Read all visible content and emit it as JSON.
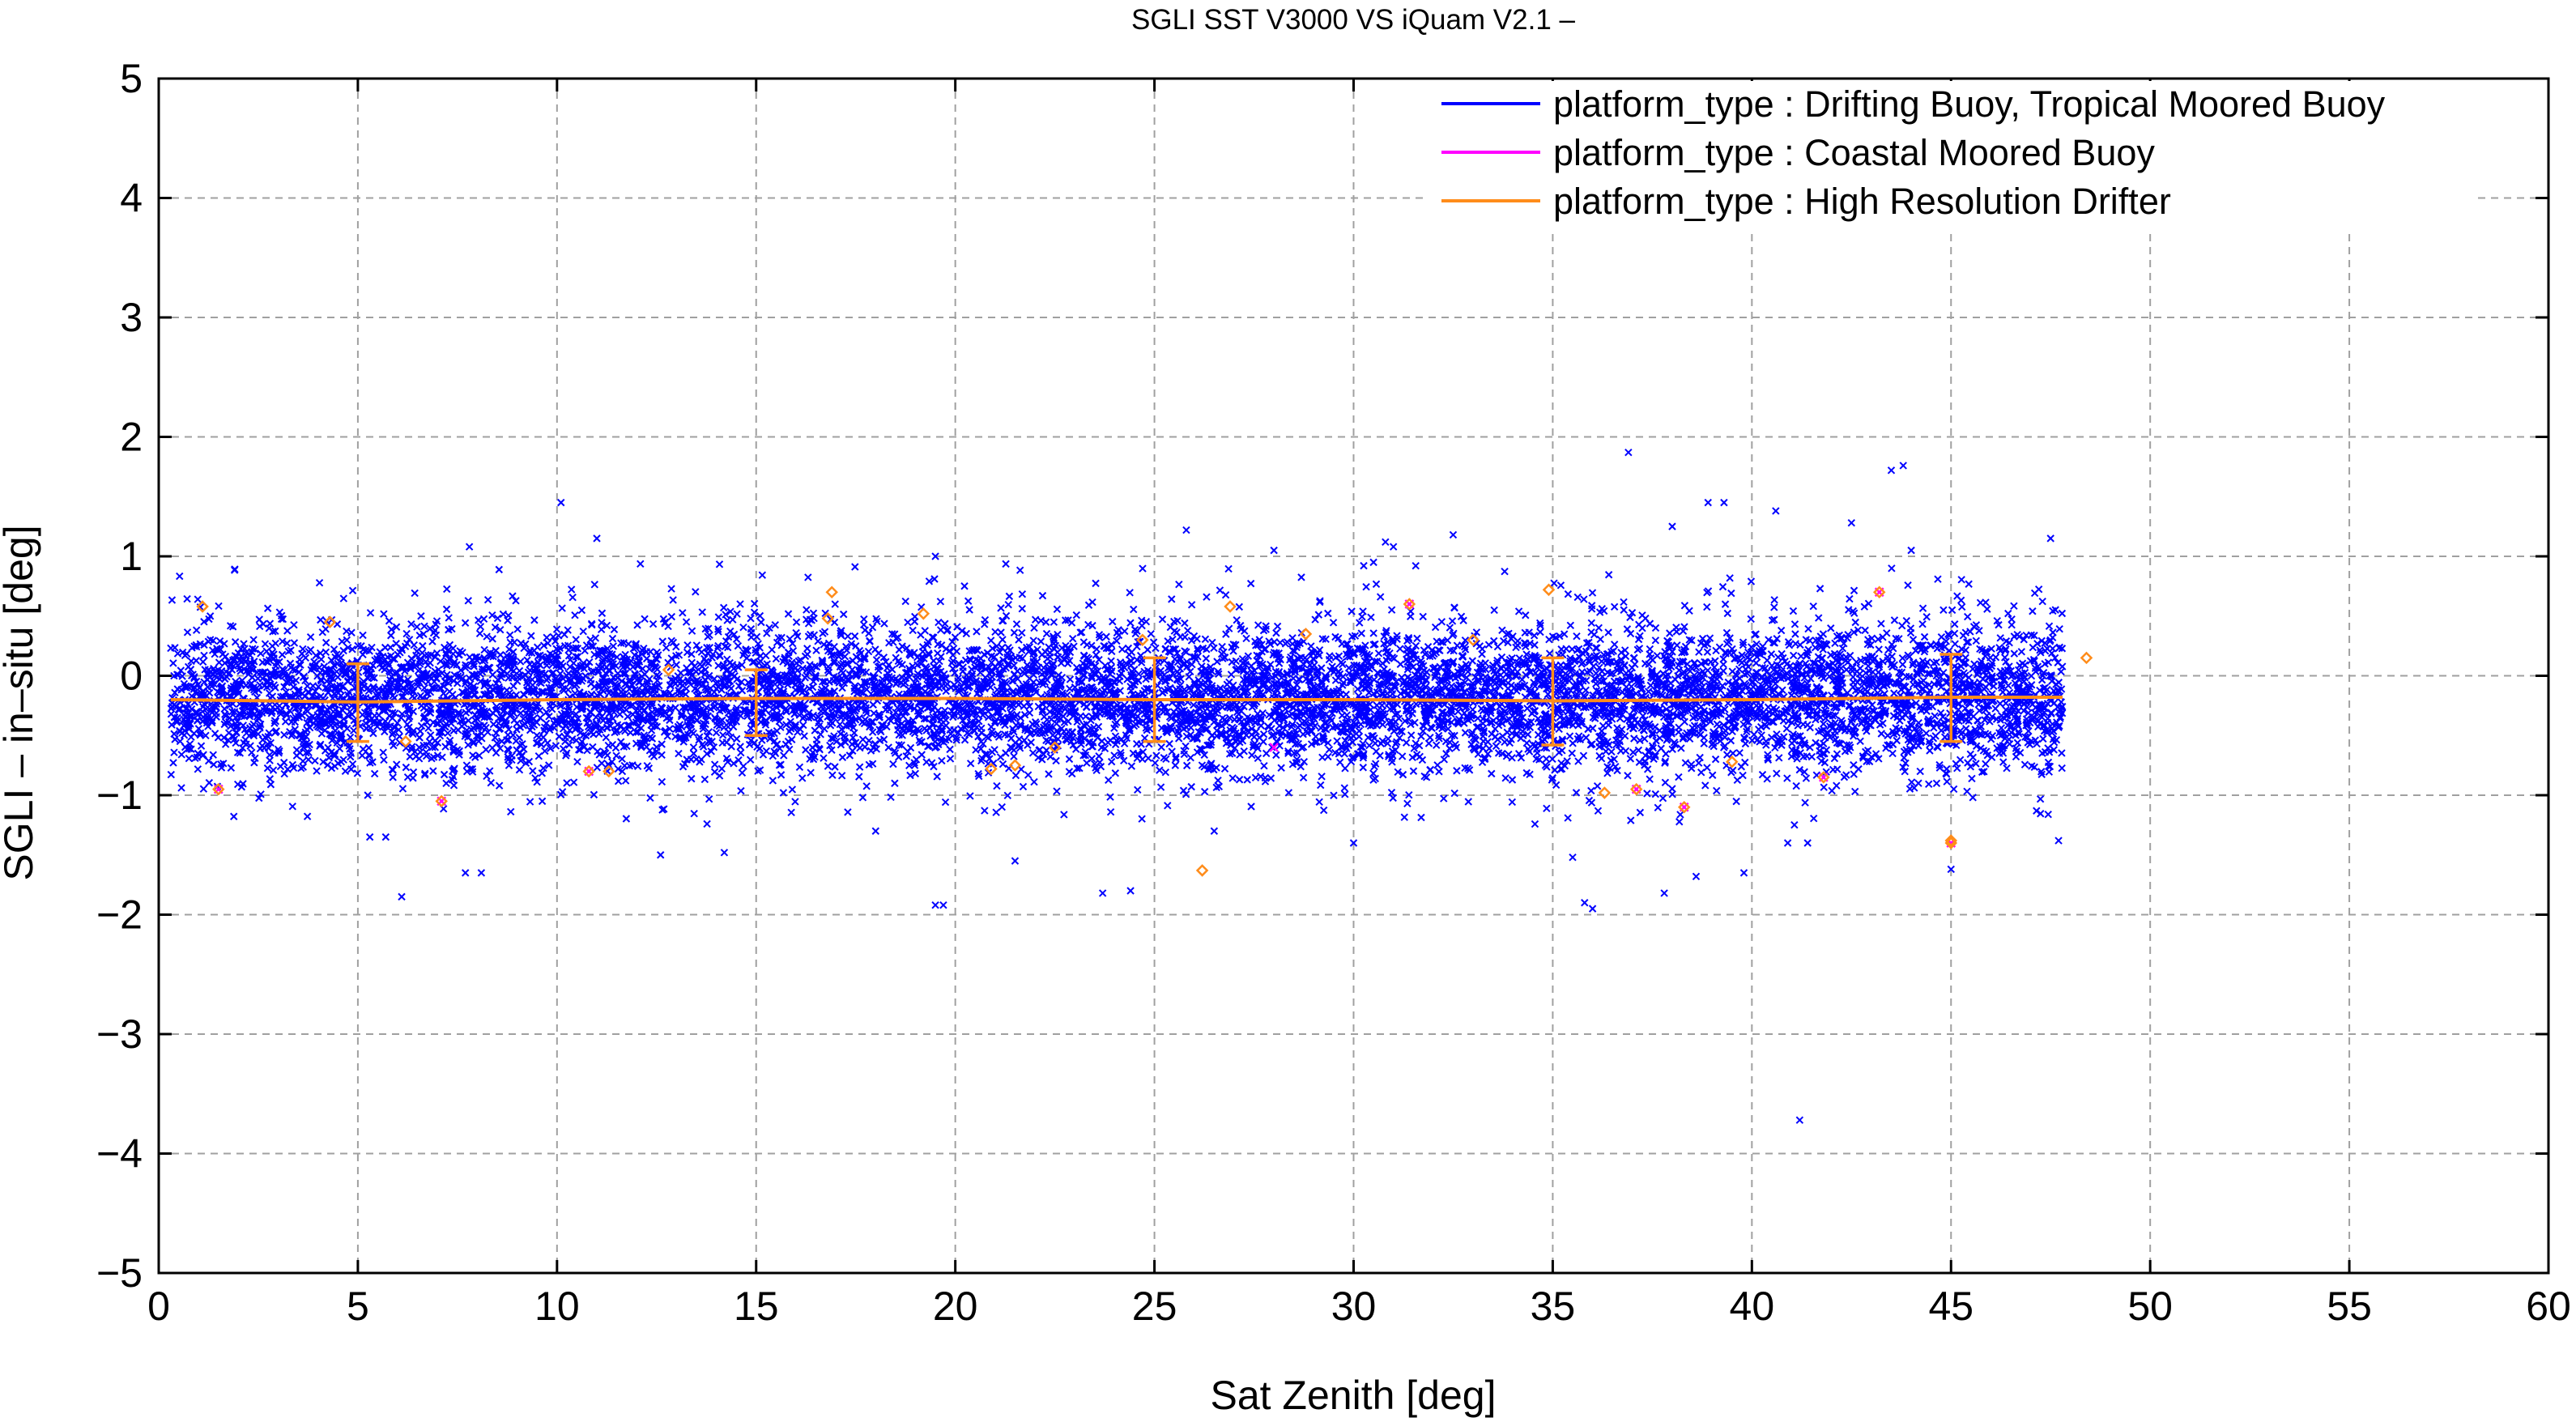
{
  "chart_data": {
    "type": "scatter",
    "title": "SGLI SST V3000 VS iQuam V2.1  –",
    "xlabel": "Sat Zenith [deg]",
    "ylabel": "SGLI – in–situ [deg]",
    "xlim": [
      0,
      60
    ],
    "ylim": [
      -5,
      5
    ],
    "xticks": [
      0,
      5,
      10,
      15,
      20,
      25,
      30,
      35,
      40,
      45,
      50,
      55,
      60
    ],
    "yticks": [
      -5,
      -4,
      -3,
      -2,
      -1,
      0,
      1,
      2,
      3,
      4,
      5
    ],
    "xtick_labels": [
      "0",
      "5",
      "10",
      "15",
      "20",
      "25",
      "30",
      "35",
      "40",
      "45",
      "50",
      "55",
      "60"
    ],
    "ytick_labels": [
      "−5",
      "−4",
      "−3",
      "−2",
      "−1",
      "0",
      "1",
      "2",
      "3",
      "4",
      "5"
    ],
    "grid": true,
    "legend_position": "top-right",
    "legend": [
      {
        "label": "platform_type : Drifting Buoy, Tropical Moored Buoy",
        "color": "#0000ff"
      },
      {
        "label": "platform_type : Coastal Moored Buoy",
        "color": "#ff00ff"
      },
      {
        "label": "platform_type : High Resolution Drifter",
        "color": "#ff8c1a"
      }
    ],
    "series": [
      {
        "name": "platform_type : Drifting Buoy, Tropical Moored Buoy",
        "marker": "x",
        "color": "#0000ff",
        "cloud": {
          "x_range": [
            0.3,
            47.8
          ],
          "mean": -0.18,
          "std": 0.3,
          "count": 9000
        },
        "outliers": [
          {
            "x": 10.1,
            "y": 1.45
          },
          {
            "x": 11.0,
            "y": 1.15
          },
          {
            "x": 7.8,
            "y": 1.08
          },
          {
            "x": 36.9,
            "y": 1.87
          },
          {
            "x": 43.8,
            "y": 1.76
          },
          {
            "x": 43.5,
            "y": 1.72
          },
          {
            "x": 38.9,
            "y": 1.45
          },
          {
            "x": 39.3,
            "y": 1.45
          },
          {
            "x": 40.6,
            "y": 1.38
          },
          {
            "x": 38.0,
            "y": 1.25
          },
          {
            "x": 42.5,
            "y": 1.28
          },
          {
            "x": 25.8,
            "y": 1.22
          },
          {
            "x": 30.8,
            "y": 1.12
          },
          {
            "x": 31.0,
            "y": 1.08
          },
          {
            "x": 32.5,
            "y": 1.18
          },
          {
            "x": 47.5,
            "y": 1.15
          },
          {
            "x": 44.0,
            "y": 1.05
          },
          {
            "x": 28.0,
            "y": 1.05
          },
          {
            "x": 30.5,
            "y": 0.95
          },
          {
            "x": 19.5,
            "y": 1.0
          },
          {
            "x": 41.2,
            "y": -3.72
          },
          {
            "x": 19.5,
            "y": -1.92
          },
          {
            "x": 19.7,
            "y": -1.92
          },
          {
            "x": 6.1,
            "y": -1.85
          },
          {
            "x": 23.7,
            "y": -1.82
          },
          {
            "x": 24.4,
            "y": -1.8
          },
          {
            "x": 36.0,
            "y": -1.95
          },
          {
            "x": 35.8,
            "y": -1.9
          },
          {
            "x": 37.8,
            "y": -1.82
          },
          {
            "x": 38.6,
            "y": -1.68
          },
          {
            "x": 39.8,
            "y": -1.65
          },
          {
            "x": 7.7,
            "y": -1.65
          },
          {
            "x": 8.1,
            "y": -1.65
          },
          {
            "x": 45.0,
            "y": -1.62
          },
          {
            "x": 21.5,
            "y": -1.55
          },
          {
            "x": 12.6,
            "y": -1.5
          },
          {
            "x": 14.2,
            "y": -1.48
          },
          {
            "x": 35.5,
            "y": -1.52
          },
          {
            "x": 47.7,
            "y": -1.38
          },
          {
            "x": 40.9,
            "y": -1.4
          },
          {
            "x": 41.4,
            "y": -1.4
          },
          {
            "x": 5.3,
            "y": -1.35
          },
          {
            "x": 5.7,
            "y": -1.35
          },
          {
            "x": 30.0,
            "y": -1.4
          },
          {
            "x": 18.0,
            "y": -1.3
          },
          {
            "x": 26.5,
            "y": -1.3
          }
        ]
      },
      {
        "name": "platform_type : Coastal Moored Buoy",
        "marker": "x",
        "color": "#ff00ff",
        "points": [
          {
            "x": 1.5,
            "y": -0.95
          },
          {
            "x": 7.1,
            "y": -1.05
          },
          {
            "x": 10.8,
            "y": -0.8
          },
          {
            "x": 28.0,
            "y": -0.6
          },
          {
            "x": 31.4,
            "y": 0.6
          },
          {
            "x": 37.1,
            "y": -0.95
          },
          {
            "x": 38.3,
            "y": -1.1
          },
          {
            "x": 41.8,
            "y": -0.85
          },
          {
            "x": 43.2,
            "y": 0.7
          },
          {
            "x": 45.0,
            "y": -1.4
          }
        ]
      },
      {
        "name": "platform_type : High Resolution Drifter",
        "marker": "diamond",
        "color": "#ff8c1a",
        "points": [
          {
            "x": 1.1,
            "y": 0.58
          },
          {
            "x": 1.5,
            "y": -0.95
          },
          {
            "x": 7.1,
            "y": -1.05
          },
          {
            "x": 10.8,
            "y": -0.8
          },
          {
            "x": 11.3,
            "y": -0.8
          },
          {
            "x": 16.9,
            "y": 0.7
          },
          {
            "x": 16.8,
            "y": 0.48
          },
          {
            "x": 19.2,
            "y": 0.52
          },
          {
            "x": 20.9,
            "y": -0.78
          },
          {
            "x": 21.5,
            "y": -0.75
          },
          {
            "x": 26.2,
            "y": -1.63
          },
          {
            "x": 26.9,
            "y": 0.58
          },
          {
            "x": 31.4,
            "y": 0.6
          },
          {
            "x": 34.9,
            "y": 0.72
          },
          {
            "x": 36.3,
            "y": -0.98
          },
          {
            "x": 37.1,
            "y": -0.95
          },
          {
            "x": 38.3,
            "y": -1.1
          },
          {
            "x": 41.8,
            "y": -0.85
          },
          {
            "x": 43.2,
            "y": 0.7
          },
          {
            "x": 45.0,
            "y": -1.38
          },
          {
            "x": 45.0,
            "y": -1.4
          },
          {
            "x": 48.4,
            "y": 0.15
          },
          {
            "x": 4.3,
            "y": 0.45
          },
          {
            "x": 24.7,
            "y": 0.3
          },
          {
            "x": 39.5,
            "y": -0.72
          },
          {
            "x": 6.2,
            "y": -0.55
          },
          {
            "x": 33.0,
            "y": 0.3
          },
          {
            "x": 12.8,
            "y": 0.05
          },
          {
            "x": 28.8,
            "y": 0.35
          },
          {
            "x": 22.5,
            "y": -0.6
          }
        ]
      },
      {
        "name": "platform_type : High Resolution Drifter",
        "marker": "line-errorbar",
        "color": "#ff8c1a",
        "mean_line": {
          "x": [
            0.3,
            5,
            10,
            15,
            20,
            25,
            30,
            35,
            40,
            45,
            47.8
          ],
          "y": [
            -0.2,
            -0.22,
            -0.2,
            -0.19,
            -0.19,
            -0.2,
            -0.2,
            -0.21,
            -0.2,
            -0.18,
            -0.18
          ]
        },
        "errorbars": [
          {
            "x": 5,
            "y": -0.22,
            "low": -0.55,
            "high": 0.1
          },
          {
            "x": 15,
            "y": -0.2,
            "low": -0.5,
            "high": 0.05
          },
          {
            "x": 25,
            "y": -0.2,
            "low": -0.55,
            "high": 0.15
          },
          {
            "x": 35,
            "y": -0.22,
            "low": -0.58,
            "high": 0.15
          },
          {
            "x": 45,
            "y": -0.2,
            "low": -0.55,
            "high": 0.18
          }
        ]
      }
    ]
  }
}
